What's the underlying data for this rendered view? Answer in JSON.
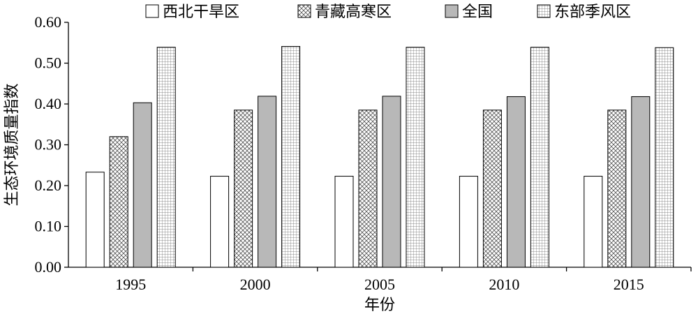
{
  "chart_data": {
    "type": "bar",
    "title": "",
    "xlabel": "年份",
    "ylabel": "生态环境质量指数",
    "categories": [
      "1995",
      "2000",
      "2005",
      "2010",
      "2015"
    ],
    "series": [
      {
        "name": "西北干旱区",
        "values": [
          0.233,
          0.223,
          0.223,
          0.223,
          0.223
        ],
        "pattern": "plain",
        "color": "#ffffff"
      },
      {
        "name": "青藏高寒区",
        "values": [
          0.32,
          0.385,
          0.385,
          0.385,
          0.385
        ],
        "pattern": "crosshatch",
        "color": "#ffffff"
      },
      {
        "name": "全国",
        "values": [
          0.403,
          0.419,
          0.419,
          0.418,
          0.418
        ],
        "pattern": "solid",
        "color": "#b8b8b8"
      },
      {
        "name": "东部季风区",
        "values": [
          0.539,
          0.541,
          0.539,
          0.539,
          0.538
        ],
        "pattern": "grid",
        "color": "#ffffff"
      }
    ],
    "ylim": [
      0,
      0.6
    ],
    "yticks": [
      "0.00",
      "0.10",
      "0.20",
      "0.30",
      "0.40",
      "0.50",
      "0.60"
    ],
    "grid": false,
    "legend_position": "top"
  }
}
